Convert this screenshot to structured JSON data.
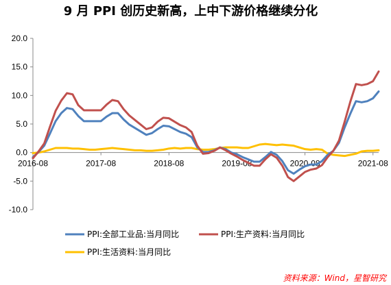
{
  "chart_data": {
    "type": "line",
    "title": "9 月 PPI 创历史新高，上中下游价格继续分化",
    "source": "资料来源：Wind，星智研究",
    "ylim": [
      -10,
      20
    ],
    "yticks": [
      "-10.0",
      "-5.0",
      "0.0",
      "5.0",
      "10.0",
      "15.0",
      "20.0"
    ],
    "ytick_values": [
      -10,
      -5,
      0,
      5,
      10,
      15,
      20
    ],
    "xticks": [
      "2016-08",
      "2017-08",
      "2018-08",
      "2019-08",
      "2020-08",
      "2021-08"
    ],
    "xtick_index": [
      0,
      12,
      24,
      36,
      48,
      60
    ],
    "x_start": "2016-08",
    "x_end": "2021-09",
    "legend_placement": "bottom",
    "grid": false,
    "series": [
      {
        "name": "PPI:全部工业品:当月同比",
        "color": "#4f81bd",
        "values": [
          -0.8,
          0.1,
          1.2,
          3.3,
          5.5,
          6.9,
          7.8,
          7.6,
          6.4,
          5.5,
          5.5,
          5.5,
          5.5,
          6.3,
          6.9,
          6.9,
          5.8,
          4.9,
          4.3,
          3.7,
          3.1,
          3.4,
          4.1,
          4.7,
          4.6,
          4.1,
          3.6,
          3.3,
          2.7,
          0.9,
          0.1,
          0.1,
          0.4,
          0.9,
          0.6,
          0.0,
          -0.3,
          -0.8,
          -1.2,
          -1.6,
          -1.6,
          -0.8,
          0.1,
          -0.4,
          -1.5,
          -3.1,
          -3.7,
          -3.0,
          -2.4,
          -2.1,
          -2.1,
          -1.5,
          -0.4,
          0.3,
          1.7,
          4.4,
          6.8,
          9.0,
          8.8,
          9.0,
          9.5,
          10.7
        ]
      },
      {
        "name": "PPI:生产资料:当月同比",
        "color": "#c0504d",
        "values": [
          -1.0,
          0.2,
          1.6,
          4.5,
          7.3,
          9.1,
          10.4,
          10.2,
          8.3,
          7.4,
          7.4,
          7.4,
          7.4,
          8.4,
          9.2,
          9.0,
          7.6,
          6.5,
          5.7,
          4.9,
          4.1,
          4.4,
          5.4,
          6.1,
          6.0,
          5.4,
          4.8,
          4.4,
          3.6,
          1.2,
          -0.2,
          -0.1,
          0.3,
          0.9,
          0.4,
          -0.2,
          -0.7,
          -1.3,
          -1.8,
          -2.3,
          -2.3,
          -1.2,
          -0.3,
          -0.9,
          -2.3,
          -4.3,
          -5.0,
          -4.2,
          -3.4,
          -3.0,
          -2.8,
          -2.2,
          -0.8,
          0.3,
          2.1,
          5.4,
          8.9,
          12.0,
          11.8,
          12.0,
          12.5,
          14.2
        ]
      },
      {
        "name": "PPI:生活资料:当月同比",
        "color": "#ffc000",
        "values": [
          -0.1,
          0.0,
          0.2,
          0.5,
          0.8,
          0.8,
          0.8,
          0.7,
          0.7,
          0.6,
          0.5,
          0.5,
          0.6,
          0.7,
          0.8,
          0.7,
          0.6,
          0.5,
          0.4,
          0.4,
          0.3,
          0.3,
          0.4,
          0.5,
          0.7,
          0.8,
          0.7,
          0.8,
          0.8,
          0.6,
          0.5,
          0.5,
          0.6,
          0.8,
          0.9,
          0.9,
          0.9,
          0.8,
          0.8,
          1.1,
          1.4,
          1.5,
          1.4,
          1.3,
          1.4,
          1.3,
          1.2,
          0.9,
          0.6,
          0.5,
          0.6,
          0.5,
          -0.2,
          -0.4,
          -0.5,
          -0.6,
          -0.4,
          -0.2,
          0.2,
          0.3,
          0.3,
          0.4
        ]
      }
    ]
  }
}
